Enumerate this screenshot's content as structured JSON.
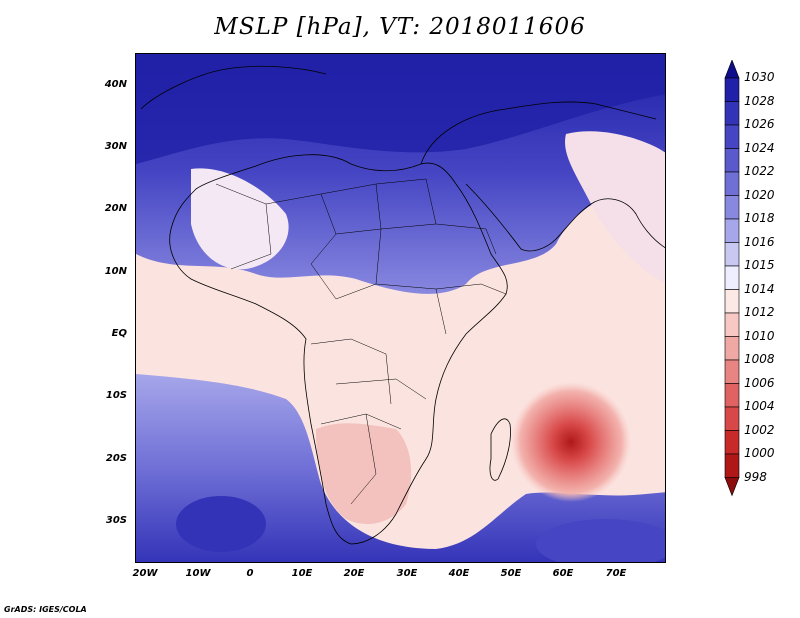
{
  "title": "MSLP [hPa], VT: 2018011606",
  "footer": "GrADS: IGES/COLA",
  "lat_labels": [
    "40N",
    "30N",
    "20N",
    "10N",
    "EQ",
    "10S",
    "20S",
    "30S"
  ],
  "lon_labels": [
    "20W",
    "10W",
    "0",
    "10E",
    "20E",
    "30E",
    "40E",
    "50E",
    "60E",
    "70E"
  ],
  "colorbar": {
    "levels": [
      "1030",
      "1028",
      "1026",
      "1024",
      "1022",
      "1020",
      "1018",
      "1016",
      "1015",
      "1014",
      "1012",
      "1010",
      "1008",
      "1006",
      "1004",
      "1002",
      "1000",
      "998"
    ],
    "colors": [
      "#0e0e8c",
      "#2020a8",
      "#3333b8",
      "#4646c4",
      "#5a5acd",
      "#6f6fd6",
      "#8888e0",
      "#a6a6ea",
      "#c8c8f3",
      "#eeeeff",
      "#fce9e6",
      "#f8c9c4",
      "#f0a8a4",
      "#e88482",
      "#e06262",
      "#d84848",
      "#c82a2a",
      "#b01818",
      "#8c0c0c"
    ]
  }
}
